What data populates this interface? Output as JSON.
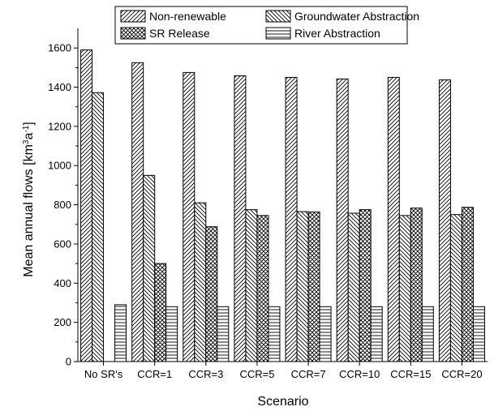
{
  "chart_data": {
    "type": "bar",
    "categories": [
      "No SR's",
      "CCR=1",
      "CCR=3",
      "CCR=5",
      "CCR=7",
      "CCR=10",
      "CCR=15",
      "CCR=20"
    ],
    "series": [
      {
        "name": "Non-renewable",
        "pattern": "forward-diagonal",
        "values": [
          1590,
          1525,
          1475,
          1458,
          1450,
          1442,
          1450,
          1437
        ]
      },
      {
        "name": "Groundwater Abstraction",
        "pattern": "back-diagonal",
        "values": [
          1372,
          950,
          810,
          775,
          765,
          757,
          745,
          750
        ]
      },
      {
        "name": "SR Release",
        "pattern": "crosshatch",
        "values": [
          0,
          500,
          688,
          745,
          763,
          775,
          783,
          787
        ]
      },
      {
        "name": "River Abstraction",
        "pattern": "horizontal-lines",
        "values": [
          290,
          280,
          280,
          280,
          280,
          280,
          280,
          280
        ]
      }
    ],
    "xlabel": "Scenario",
    "ylabel_prefix": "Mean annual flows [km",
    "ylabel_sup1": "3",
    "ylabel_mid": "a",
    "ylabel_sup2": "-1",
    "ylabel_suffix": "]",
    "ylim": [
      0,
      1700
    ],
    "yticks": [
      0,
      200,
      400,
      600,
      800,
      1000,
      1200,
      1400,
      1600
    ],
    "legend_position": "top",
    "grid": false
  }
}
